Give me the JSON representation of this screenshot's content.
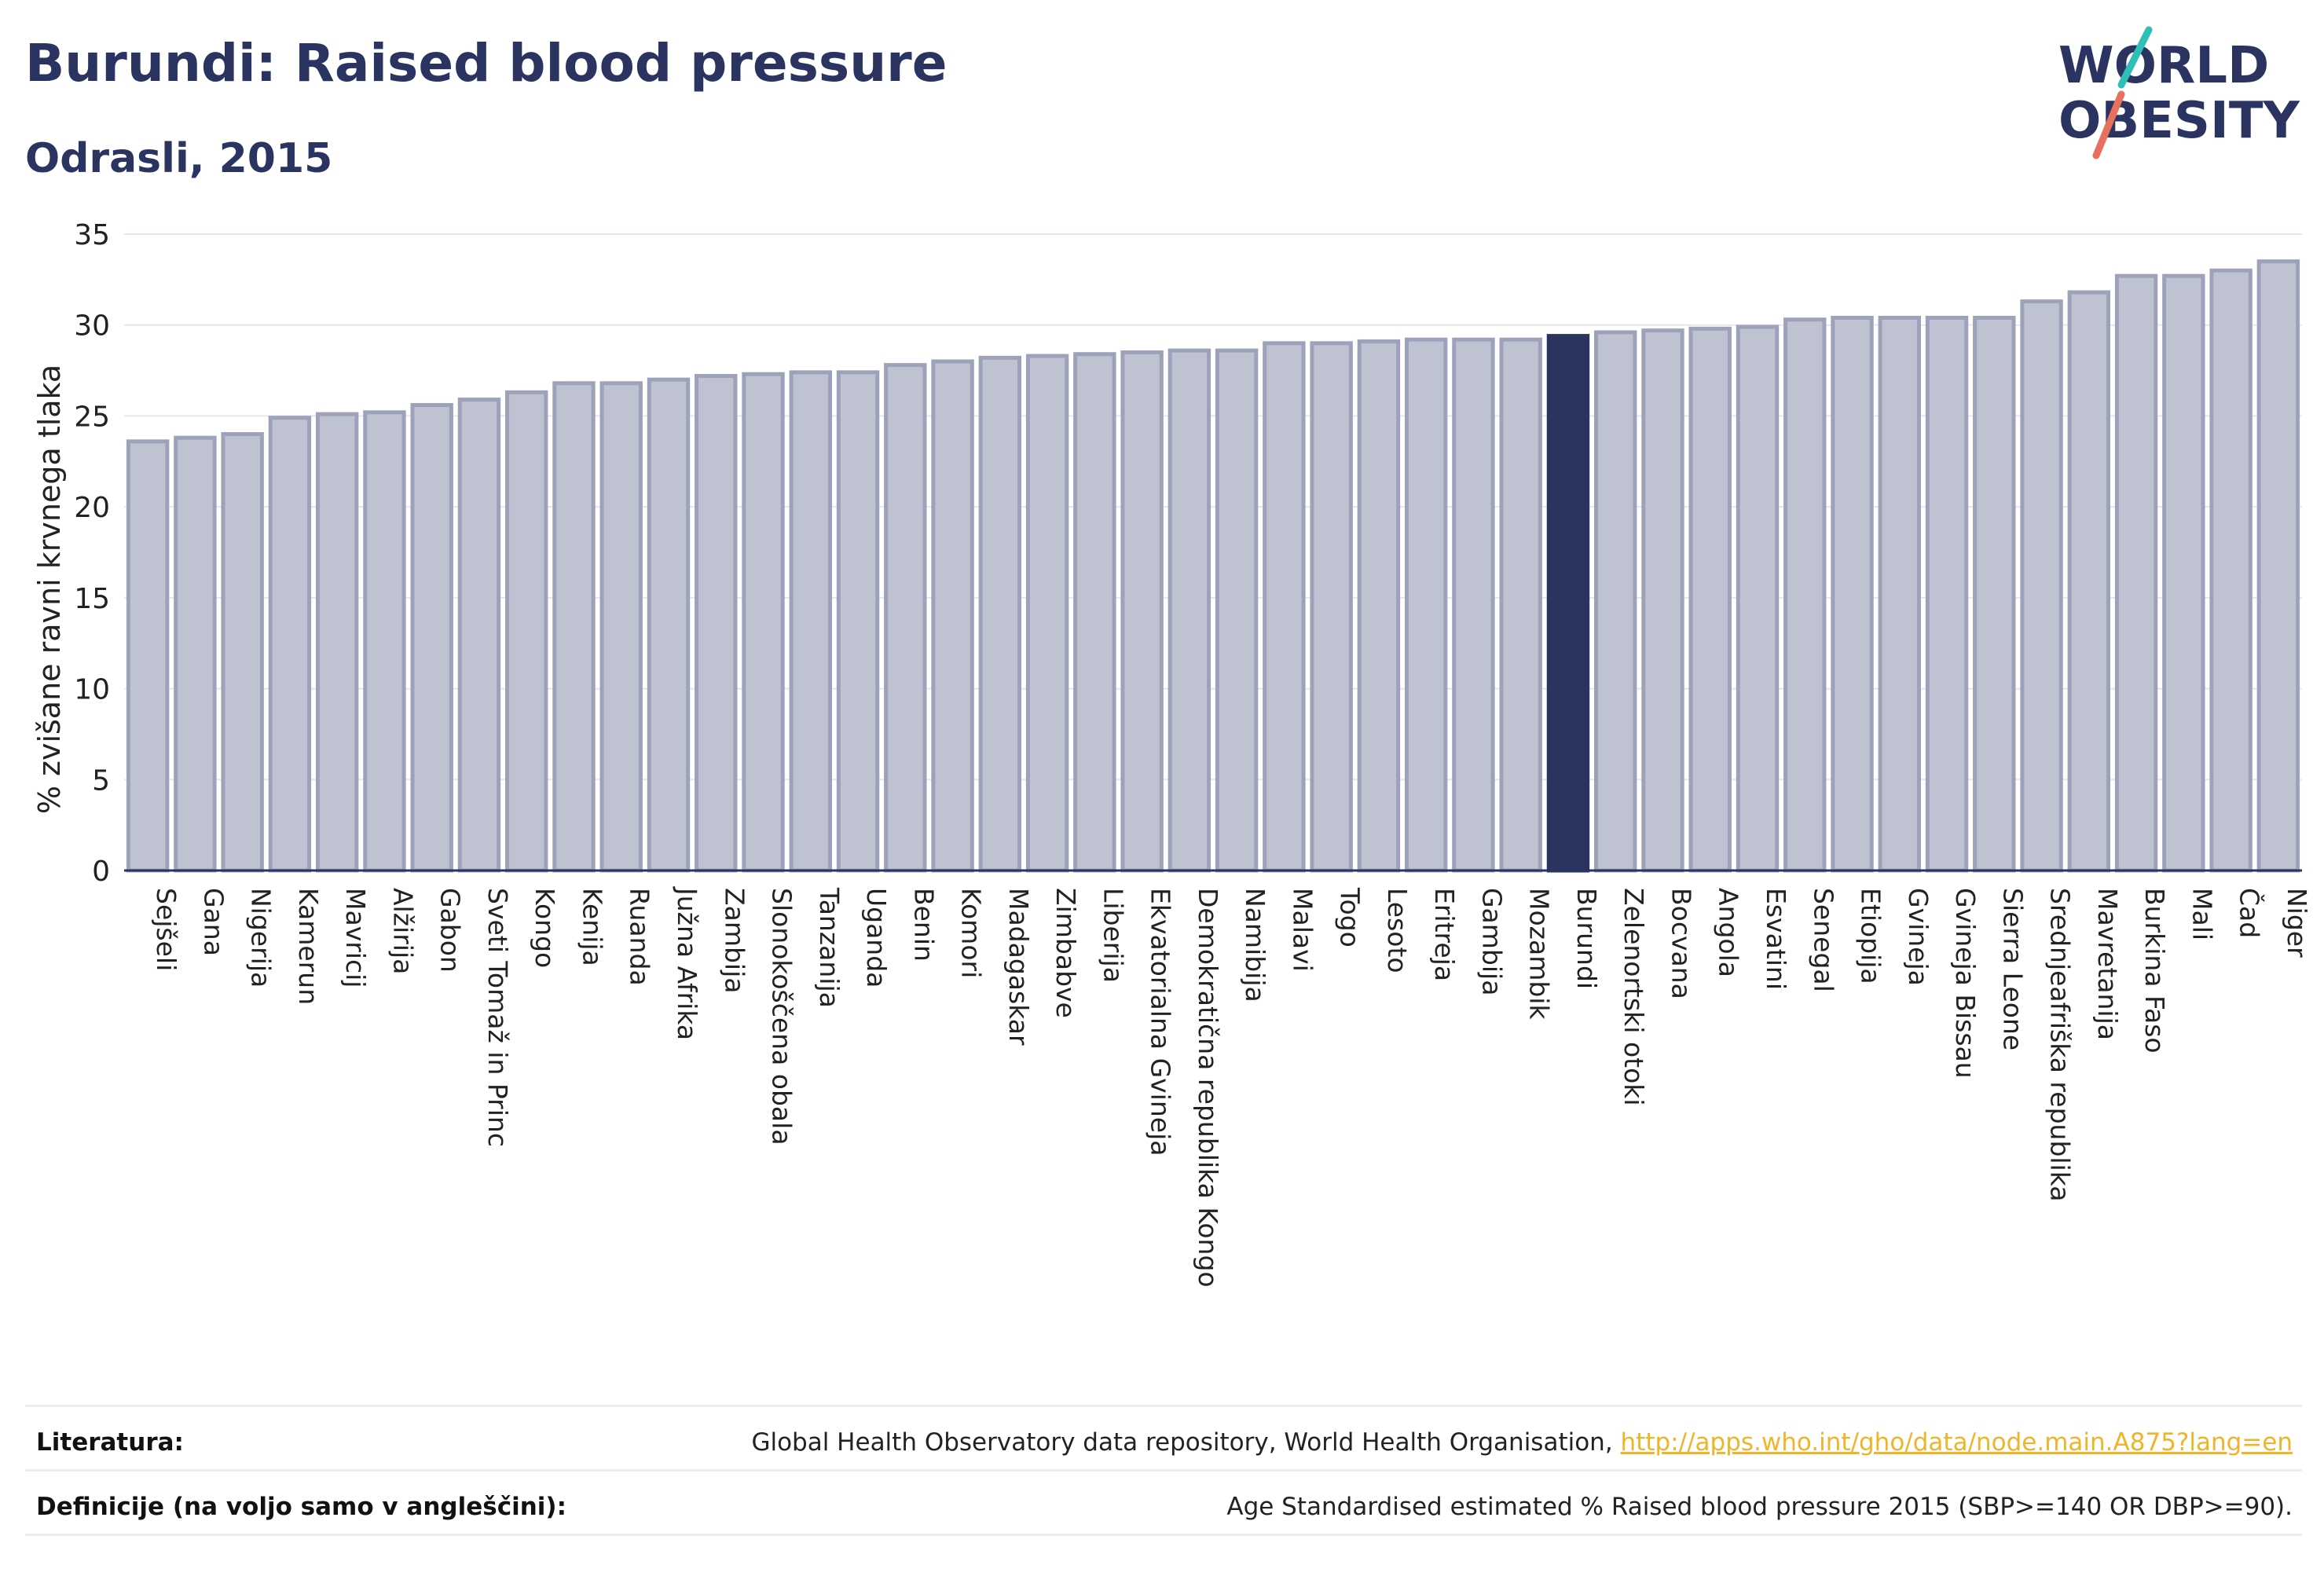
{
  "header": {
    "title": "Burundi: Raised blood pressure",
    "subtitle": "Odrasli, 2015"
  },
  "logo": {
    "line1": "WORLD",
    "line2": "OBESITY"
  },
  "chart_data": {
    "type": "bar",
    "ylabel": "% zvišane ravni krvnega tlaka",
    "ylim": [
      0,
      35
    ],
    "yticks": [
      0,
      5,
      10,
      15,
      20,
      25,
      30,
      35
    ],
    "grid": true,
    "highlight": "Burundi",
    "categories": [
      "Sejšeli",
      "Gana",
      "Nigerija",
      "Kamerun",
      "Mavricij",
      "Alžirija",
      "Gabon",
      "Sveti Tomaž in Princ",
      "Kongo",
      "Kenija",
      "Ruanda",
      "Južna Afrika",
      "Zambija",
      "Slonokoščena obala",
      "Tanzanija",
      "Uganda",
      "Benin",
      "Komori",
      "Madagaskar",
      "Zimbabve",
      "Liberija",
      "Ekvatorialna Gvineja",
      "Demokratična republika Kongo",
      "Namibija",
      "Malavi",
      "Togo",
      "Lesoto",
      "Eritreja",
      "Gambija",
      "Mozambik",
      "Burundi",
      "Zelenortski otoki",
      "Bocvana",
      "Angola",
      "Esvatini",
      "Senegal",
      "Etiopija",
      "Gvineja",
      "Gvineja Bissau",
      "Sierra Leone",
      "Srednjeafriška republika",
      "Mavretanija",
      "Burkina Faso",
      "Mali",
      "Čad",
      "Niger"
    ],
    "values": [
      23.6,
      23.8,
      24.0,
      24.9,
      25.1,
      25.2,
      25.6,
      25.9,
      26.3,
      26.8,
      26.8,
      27.0,
      27.2,
      27.3,
      27.4,
      27.4,
      27.8,
      28.0,
      28.2,
      28.3,
      28.4,
      28.5,
      28.6,
      28.6,
      29.0,
      29.0,
      29.1,
      29.2,
      29.2,
      29.2,
      29.4,
      29.6,
      29.7,
      29.8,
      29.9,
      30.3,
      30.4,
      30.4,
      30.4,
      30.4,
      31.3,
      31.8,
      32.7,
      32.7,
      33.0,
      33.5
    ],
    "colors": {
      "bar": "#bfc2d1",
      "bar_stroke": "#9da2bb",
      "highlight": "#2b3460",
      "axis": "#2b3460",
      "grid": "#e6e7ee"
    }
  },
  "footer": {
    "sources_label": "Literatura:",
    "sources_text": "Global Health Observatory data repository, World Health Organisation, ",
    "sources_link": "http://apps.who.int/gho/data/node.main.A875?lang=en",
    "definitions_label": "Definicije (na voljo samo v angleščini):",
    "definitions_text": "Age Standardised estimated % Raised blood pressure 2015 (SBP>=140 OR DBP>=90)."
  }
}
